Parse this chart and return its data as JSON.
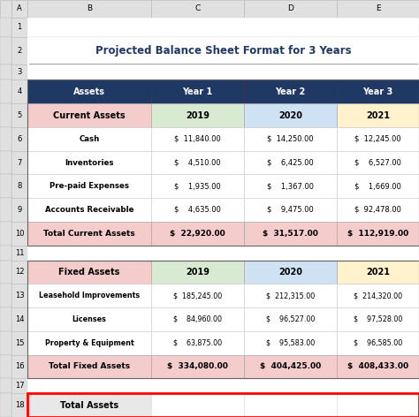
{
  "title": "Projected Balance Sheet Format for 3 Years",
  "title_color": "#1F3864",
  "header_bg": "#1F3864",
  "current_assets_header_bg": "#F4CCCC",
  "year1_bg": "#D9EAD3",
  "year2_bg": "#CFE2F3",
  "year3_bg": "#FFF2CC",
  "total_row_bg": "#F4CCCC",
  "fixed_header_bg": "#F4CCCC",
  "strip_bg": "#E0E0E0",
  "col_headers": [
    "Assets",
    "Year 1",
    "Year 2",
    "Year 3"
  ],
  "current_section_year_row": [
    "Current Assets",
    "2019",
    "2020",
    "2021"
  ],
  "current_rows": [
    [
      "Cash",
      "$  11,840.00",
      "$  14,250.00",
      "$  12,245.00"
    ],
    [
      "Inventories",
      "$    4,510.00",
      "$    6,425.00",
      "$    6,527.00"
    ],
    [
      "Pre-paid Expenses",
      "$    1,935.00",
      "$    1,367.00",
      "$    1,669.00"
    ],
    [
      "Accounts Receivable",
      "$    4,635.00",
      "$    9,475.00",
      "$  92,478.00"
    ]
  ],
  "current_total_row": [
    "Total Current Assets",
    "$  22,920.00",
    "$  31,517.00",
    "$  112,919.00"
  ],
  "fixed_section_year_row": [
    "Fixed Assets",
    "2019",
    "2020",
    "2021"
  ],
  "fixed_rows": [
    [
      "Leasehold Improvements",
      "$  185,245.00",
      "$  212,315.00",
      "$  214,320.00"
    ],
    [
      "Licenses",
      "$    84,960.00",
      "$    96,527.00",
      "$    97,528.00"
    ],
    [
      "Property & Equipment",
      "$    63,875.00",
      "$    95,583.00",
      "$    96,585.00"
    ]
  ],
  "fixed_total_row": [
    "Total Fixed Assets",
    "$  334,080.00",
    "$  404,425.00",
    "$  408,433.00"
  ],
  "total_assets_label": "Total Assets"
}
